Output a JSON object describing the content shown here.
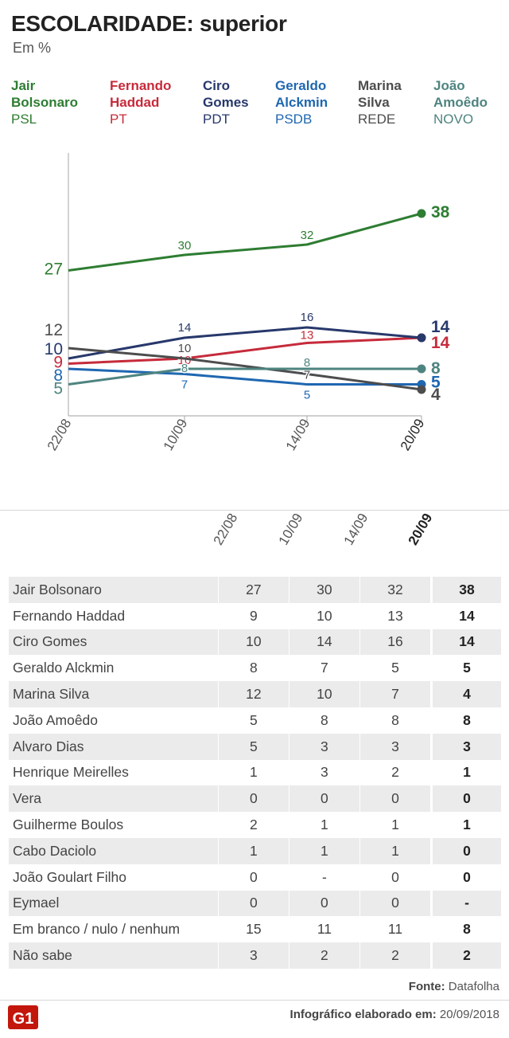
{
  "header": {
    "title": "ESCOLARIDADE: superior",
    "subtitle": "Em %"
  },
  "legend": [
    {
      "name_line1": "Jair",
      "name_line2": "Bolsonaro",
      "party": "PSL",
      "color": "#2e7d32"
    },
    {
      "name_line1": "Fernando",
      "name_line2": "Haddad",
      "party": "PT",
      "color": "#c62b3b"
    },
    {
      "name_line1": "Ciro",
      "name_line2": "Gomes",
      "party": "PDT",
      "color": "#27386b"
    },
    {
      "name_line1": "Geraldo",
      "name_line2": "Alckmin",
      "party": "PSDB",
      "color": "#1f67b1"
    },
    {
      "name_line1": "Marina",
      "name_line2": "Silva",
      "party": "REDE",
      "color": "#4d4d4d"
    },
    {
      "name_line1": "João",
      "name_line2": "Amoêdo",
      "party": "NOVO",
      "color": "#4e8480"
    }
  ],
  "chart_data": {
    "type": "line",
    "title": "ESCOLARIDADE: superior",
    "subtitle": "Em %",
    "x": [
      "22/08",
      "10/09",
      "14/09",
      "20/09"
    ],
    "ylim": [
      0,
      40
    ],
    "series": [
      {
        "name": "Jair Bolsonaro",
        "color": "#2e7d32",
        "values": [
          27,
          30,
          32,
          38
        ]
      },
      {
        "name": "Fernando Haddad",
        "color": "#c62b3b",
        "values": [
          9,
          10,
          13,
          14
        ]
      },
      {
        "name": "Ciro Gomes",
        "color": "#27386b",
        "values": [
          10,
          14,
          16,
          14
        ]
      },
      {
        "name": "Geraldo Alckmin",
        "color": "#1f67b1",
        "values": [
          8,
          7,
          5,
          5
        ]
      },
      {
        "name": "Marina Silva",
        "color": "#4d4d4d",
        "values": [
          12,
          10,
          7,
          4
        ]
      },
      {
        "name": "João Amoêdo",
        "color": "#4e8480",
        "values": [
          5,
          8,
          8,
          8
        ]
      }
    ]
  },
  "table": {
    "columns": [
      "22/08",
      "10/09",
      "14/09",
      "20/09"
    ],
    "rows": [
      {
        "name": "Jair Bolsonaro",
        "values": [
          "27",
          "30",
          "32",
          "38"
        ]
      },
      {
        "name": "Fernando Haddad",
        "values": [
          "9",
          "10",
          "13",
          "14"
        ]
      },
      {
        "name": "Ciro Gomes",
        "values": [
          "10",
          "14",
          "16",
          "14"
        ]
      },
      {
        "name": "Geraldo Alckmin",
        "values": [
          "8",
          "7",
          "5",
          "5"
        ]
      },
      {
        "name": "Marina Silva",
        "values": [
          "12",
          "10",
          "7",
          "4"
        ]
      },
      {
        "name": "João Amoêdo",
        "values": [
          "5",
          "8",
          "8",
          "8"
        ]
      },
      {
        "name": "Alvaro Dias",
        "values": [
          "5",
          "3",
          "3",
          "3"
        ]
      },
      {
        "name": "Henrique Meirelles",
        "values": [
          "1",
          "3",
          "2",
          "1"
        ]
      },
      {
        "name": "Vera",
        "values": [
          "0",
          "0",
          "0",
          "0"
        ]
      },
      {
        "name": "Guilherme Boulos",
        "values": [
          "2",
          "1",
          "1",
          "1"
        ]
      },
      {
        "name": "Cabo Daciolo",
        "values": [
          "1",
          "1",
          "1",
          "0"
        ]
      },
      {
        "name": "João Goulart Filho",
        "values": [
          "0",
          "-",
          "0",
          "0"
        ]
      },
      {
        "name": "Eymael",
        "values": [
          "0",
          "0",
          "0",
          "-"
        ]
      },
      {
        "name": "Em branco / nulo / nenhum",
        "values": [
          "15",
          "11",
          "11",
          "8"
        ]
      },
      {
        "name": "Não sabe",
        "values": [
          "3",
          "2",
          "2",
          "2"
        ]
      }
    ]
  },
  "footer": {
    "source_label": "Fonte:",
    "source_value": "Datafolha",
    "credit_label": "Infográfico elaborado em:",
    "credit_value": "20/09/2018",
    "logo_text": "G1"
  }
}
